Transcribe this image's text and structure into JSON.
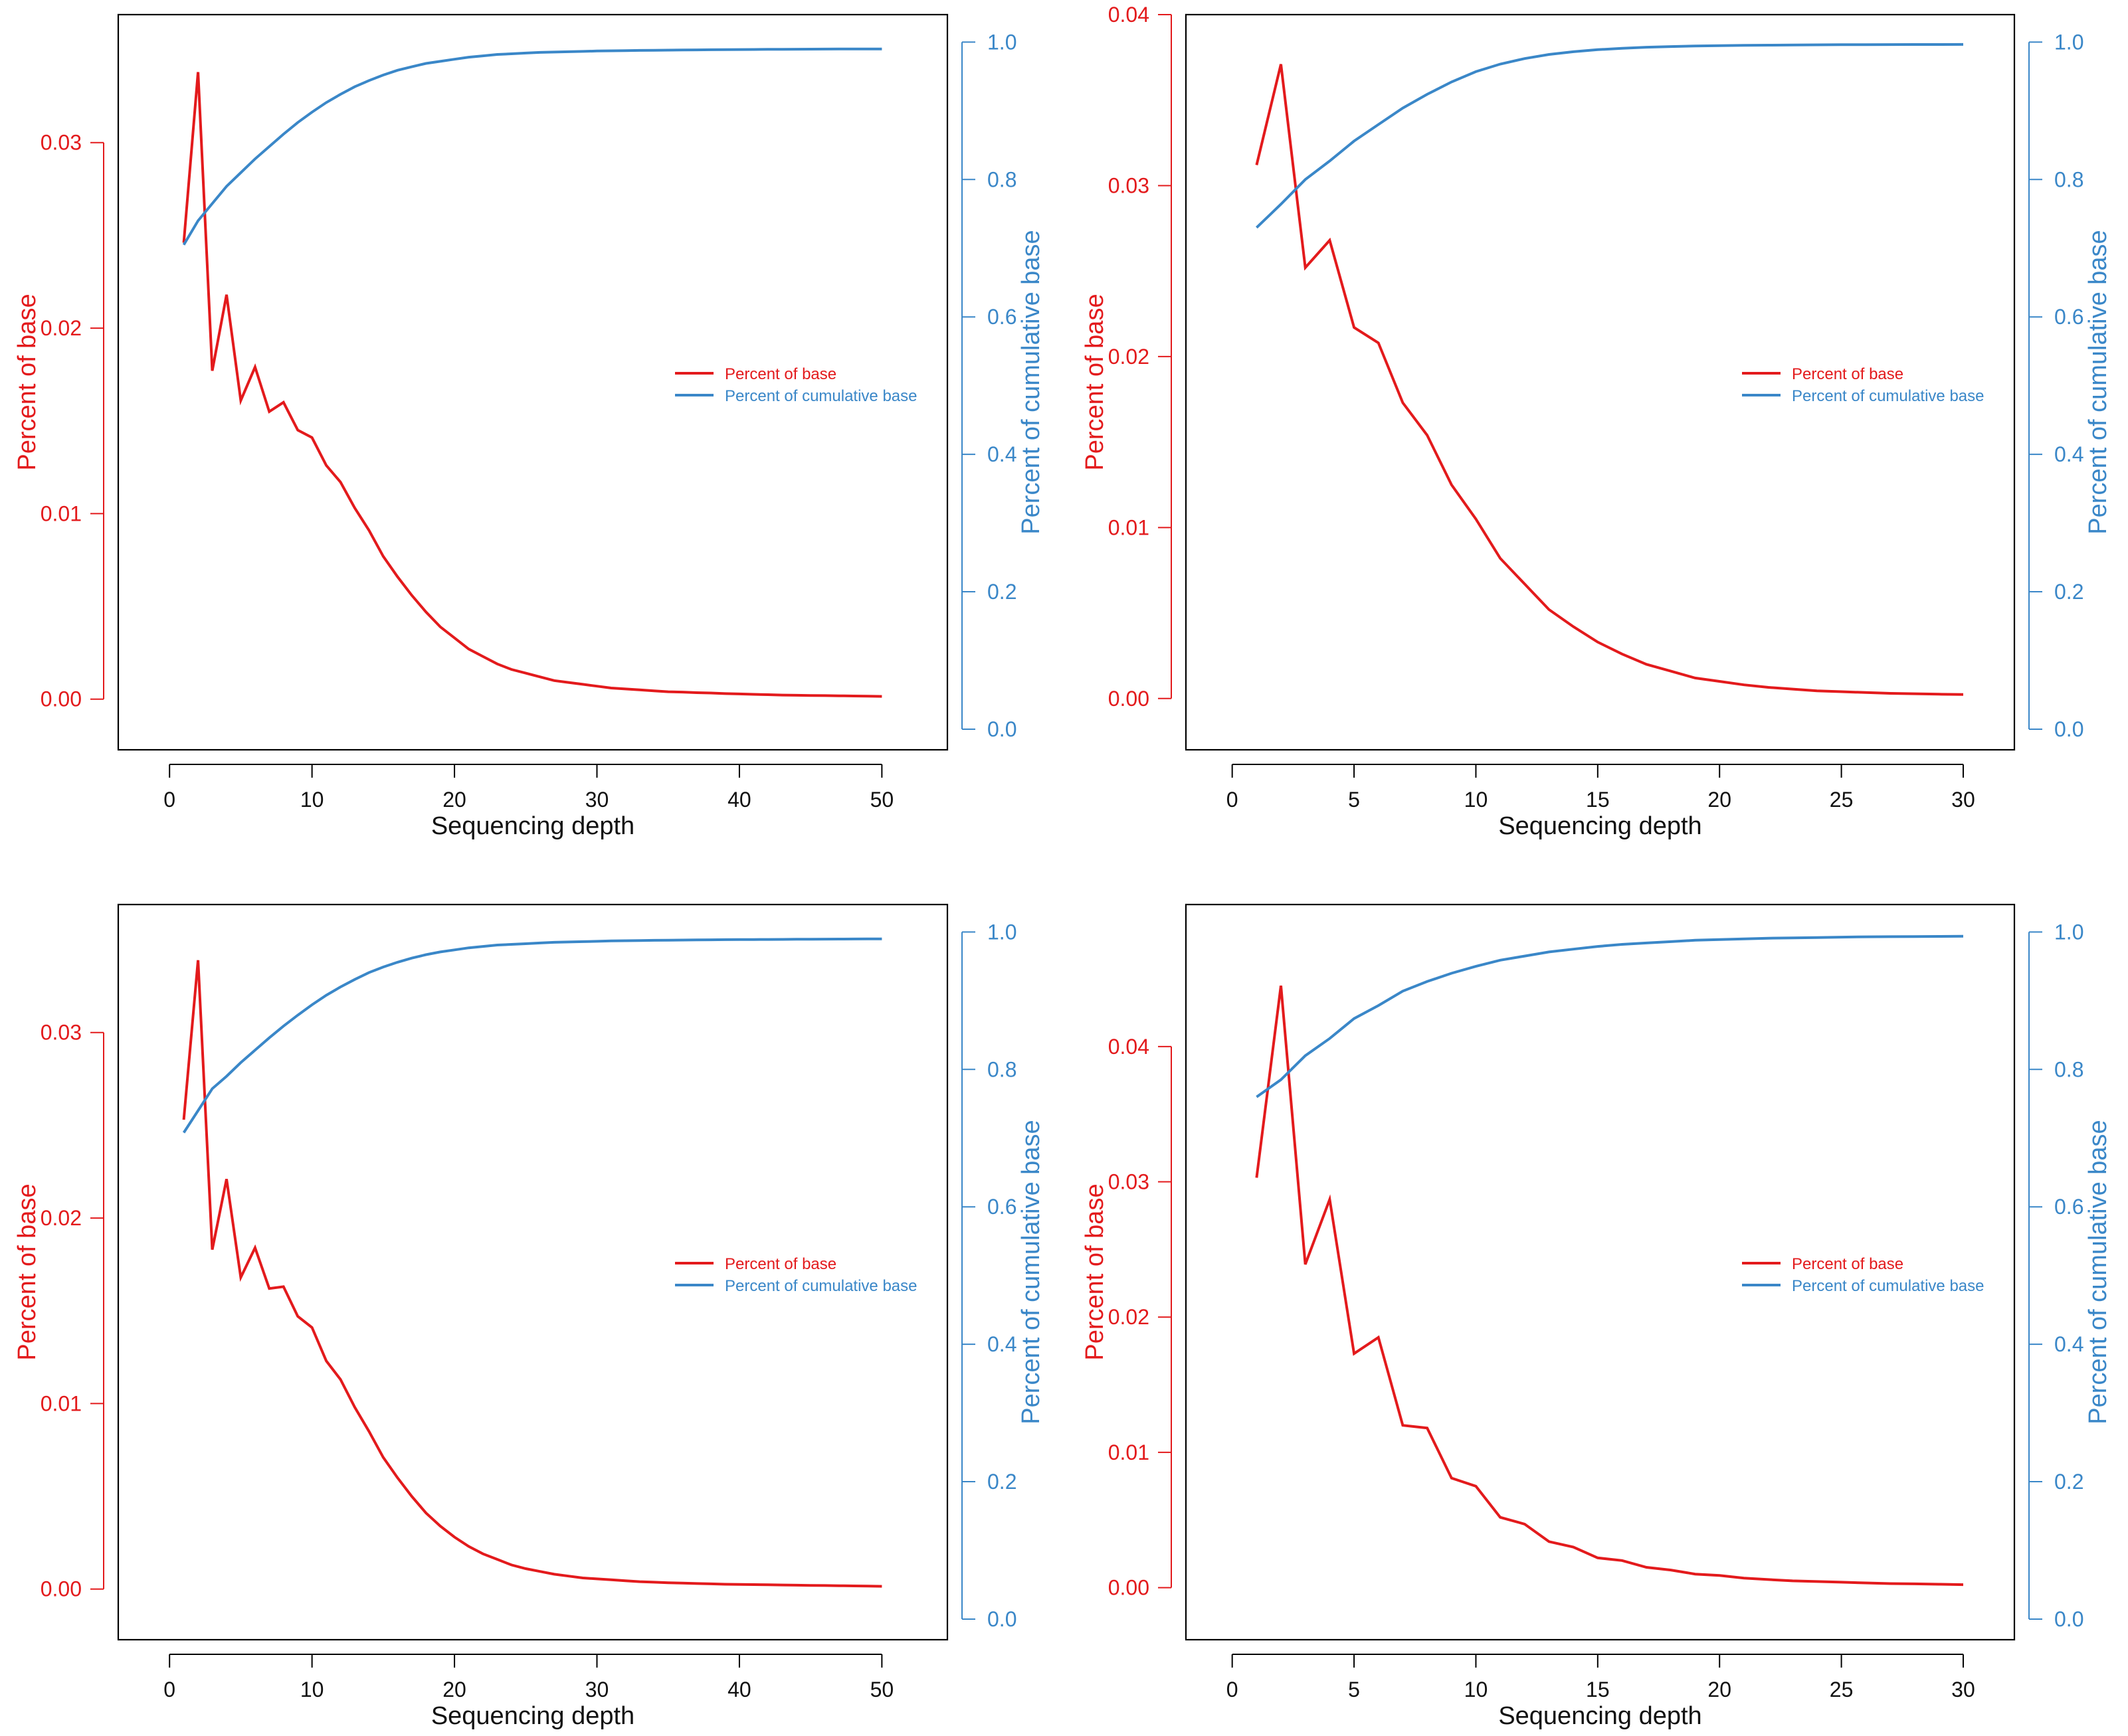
{
  "colors": {
    "left_axis": "#e31a1c",
    "right_axis": "#3a87c8",
    "frame": "#000000",
    "background": "#ffffff"
  },
  "chart_data": [
    {
      "type": "line",
      "xlabel": "Sequencing depth",
      "ylabel_left": "Percent of base",
      "ylabel_right": "Percent of cumulative base",
      "xlim": [
        -3.6,
        54.6
      ],
      "xticks": [
        0,
        10,
        20,
        30,
        40,
        50
      ],
      "ylim_left": [
        -0.00273,
        0.0369
      ],
      "yticks_left": [
        0.0,
        0.01,
        0.02,
        0.03
      ],
      "ytick_labels_left": [
        "0.00",
        "0.01",
        "0.02",
        "0.03"
      ],
      "ylim_right": [
        -0.03,
        1.04
      ],
      "yticks_right": [
        0.0,
        0.2,
        0.4,
        0.6,
        0.8,
        1.0
      ],
      "ytick_labels_right": [
        "0.0",
        "0.2",
        "0.4",
        "0.6",
        "0.8",
        "1.0"
      ],
      "legend": {
        "placement": "center-right",
        "entries": [
          "Percent of base",
          "Percent of cumulative base"
        ]
      },
      "series": [
        {
          "name": "Percent of base",
          "axis": "left",
          "x": [
            1,
            2,
            3,
            4,
            5,
            6,
            7,
            8,
            9,
            10,
            11,
            12,
            13,
            14,
            15,
            16,
            17,
            18,
            19,
            20,
            21,
            22,
            23,
            24,
            25,
            26,
            27,
            28,
            29,
            30,
            31,
            32,
            33,
            34,
            35,
            36,
            37,
            38,
            39,
            40,
            41,
            42,
            43,
            44,
            45,
            46,
            47,
            48,
            49,
            50
          ],
          "values": [
            0.0246,
            0.0338,
            0.0177,
            0.0218,
            0.0161,
            0.0179,
            0.0155,
            0.016,
            0.0145,
            0.0141,
            0.0126,
            0.0117,
            0.0103,
            0.0091,
            0.0077,
            0.0066,
            0.0056,
            0.0047,
            0.0039,
            0.0033,
            0.0027,
            0.0023,
            0.0019,
            0.0016,
            0.0014,
            0.0012,
            0.001,
            0.0009,
            0.0008,
            0.0007,
            0.0006,
            0.00055,
            0.0005,
            0.00045,
            0.0004,
            0.00038,
            0.00035,
            0.00033,
            0.0003,
            0.00028,
            0.00026,
            0.00024,
            0.00022,
            0.00021,
            0.0002,
            0.00019,
            0.00018,
            0.00017,
            0.00016,
            0.00015
          ]
        },
        {
          "name": "Percent of cumulative base",
          "axis": "right",
          "x": [
            1,
            2,
            3,
            4,
            5,
            6,
            7,
            8,
            9,
            10,
            11,
            12,
            13,
            14,
            15,
            16,
            17,
            18,
            19,
            20,
            21,
            22,
            23,
            24,
            25,
            26,
            27,
            28,
            29,
            30,
            31,
            32,
            33,
            34,
            35,
            36,
            37,
            38,
            39,
            40,
            41,
            42,
            43,
            44,
            45,
            46,
            47,
            48,
            49,
            50
          ],
          "values": [
            0.705,
            0.74,
            0.765,
            0.79,
            0.81,
            0.83,
            0.848,
            0.866,
            0.883,
            0.898,
            0.912,
            0.924,
            0.935,
            0.944,
            0.952,
            0.959,
            0.964,
            0.969,
            0.972,
            0.975,
            0.978,
            0.98,
            0.982,
            0.983,
            0.984,
            0.985,
            0.9855,
            0.986,
            0.9865,
            0.987,
            0.9873,
            0.9876,
            0.9879,
            0.9881,
            0.9883,
            0.9885,
            0.9887,
            0.9889,
            0.989,
            0.9892,
            0.9893,
            0.9894,
            0.9895,
            0.9896,
            0.9897,
            0.9898,
            0.9899,
            0.99,
            0.99,
            0.99
          ]
        }
      ]
    },
    {
      "type": "line",
      "xlabel": "Sequencing depth",
      "ylabel_left": "Percent of base",
      "ylabel_right": "Percent of cumulative base",
      "xlim": [
        -1.9,
        32.1
      ],
      "xticks": [
        0,
        5,
        10,
        15,
        20,
        25,
        30
      ],
      "ylim_left": [
        -0.003,
        0.04
      ],
      "yticks_left": [
        0.0,
        0.01,
        0.02,
        0.03,
        0.04
      ],
      "ytick_labels_left": [
        "0.00",
        "0.01",
        "0.02",
        "0.03",
        "0.04"
      ],
      "ylim_right": [
        -0.03,
        1.04
      ],
      "yticks_right": [
        0.0,
        0.2,
        0.4,
        0.6,
        0.8,
        1.0
      ],
      "ytick_labels_right": [
        "0.0",
        "0.2",
        "0.4",
        "0.6",
        "0.8",
        "1.0"
      ],
      "legend": {
        "placement": "center-right",
        "entries": [
          "Percent of base",
          "Percent of cumulative base"
        ]
      },
      "series": [
        {
          "name": "Percent of base",
          "axis": "left",
          "x": [
            1,
            2,
            3,
            4,
            5,
            6,
            7,
            8,
            9,
            10,
            11,
            12,
            13,
            14,
            15,
            16,
            17,
            18,
            19,
            20,
            21,
            22,
            23,
            24,
            25,
            26,
            27,
            28,
            29,
            30
          ],
          "values": [
            0.0312,
            0.0371,
            0.0252,
            0.0268,
            0.0217,
            0.0208,
            0.0173,
            0.0154,
            0.0125,
            0.0105,
            0.0082,
            0.0067,
            0.0052,
            0.0042,
            0.0033,
            0.0026,
            0.002,
            0.0016,
            0.0012,
            0.001,
            0.0008,
            0.00065,
            0.00055,
            0.00045,
            0.0004,
            0.00035,
            0.0003,
            0.00028,
            0.00025,
            0.00023
          ]
        },
        {
          "name": "Percent of cumulative base",
          "axis": "right",
          "x": [
            1,
            2,
            3,
            4,
            5,
            6,
            7,
            8,
            9,
            10,
            11,
            12,
            13,
            14,
            15,
            16,
            17,
            18,
            19,
            20,
            21,
            22,
            23,
            24,
            25,
            26,
            27,
            28,
            29,
            30
          ],
          "values": [
            0.73,
            0.764,
            0.8,
            0.827,
            0.856,
            0.88,
            0.904,
            0.924,
            0.942,
            0.957,
            0.968,
            0.976,
            0.982,
            0.986,
            0.989,
            0.991,
            0.9925,
            0.9935,
            0.9943,
            0.9948,
            0.9952,
            0.9955,
            0.9958,
            0.996,
            0.9962,
            0.9963,
            0.9964,
            0.9965,
            0.9965,
            0.9966
          ]
        }
      ]
    },
    {
      "type": "line",
      "xlabel": "Sequencing depth",
      "ylabel_left": "Percent of base",
      "ylabel_right": "Percent of cumulative base",
      "xlim": [
        -3.6,
        54.6
      ],
      "xticks": [
        0,
        10,
        20,
        30,
        40,
        50
      ],
      "ylim_left": [
        -0.00273,
        0.0369
      ],
      "yticks_left": [
        0.0,
        0.01,
        0.02,
        0.03
      ],
      "ytick_labels_left": [
        "0.00",
        "0.01",
        "0.02",
        "0.03"
      ],
      "ylim_right": [
        -0.03,
        1.04
      ],
      "yticks_right": [
        0.0,
        0.2,
        0.4,
        0.6,
        0.8,
        1.0
      ],
      "ytick_labels_right": [
        "0.0",
        "0.2",
        "0.4",
        "0.6",
        "0.8",
        "1.0"
      ],
      "legend": {
        "placement": "center-right",
        "entries": [
          "Percent of base",
          "Percent of cumulative base"
        ]
      },
      "series": [
        {
          "name": "Percent of base",
          "axis": "left",
          "x": [
            1,
            2,
            3,
            4,
            5,
            6,
            7,
            8,
            9,
            10,
            11,
            12,
            13,
            14,
            15,
            16,
            17,
            18,
            19,
            20,
            21,
            22,
            23,
            24,
            25,
            26,
            27,
            28,
            29,
            30,
            31,
            32,
            33,
            34,
            35,
            36,
            37,
            38,
            39,
            40,
            41,
            42,
            43,
            44,
            45,
            46,
            47,
            48,
            49,
            50
          ],
          "values": [
            0.0253,
            0.0339,
            0.0183,
            0.0221,
            0.0168,
            0.0184,
            0.0162,
            0.0163,
            0.0147,
            0.0141,
            0.0123,
            0.0113,
            0.0098,
            0.0085,
            0.0071,
            0.006,
            0.005,
            0.0041,
            0.0034,
            0.0028,
            0.0023,
            0.0019,
            0.0016,
            0.0013,
            0.0011,
            0.00095,
            0.0008,
            0.0007,
            0.0006,
            0.00055,
            0.0005,
            0.00045,
            0.0004,
            0.00037,
            0.00034,
            0.00032,
            0.0003,
            0.00028,
            0.00026,
            0.00025,
            0.00024,
            0.00023,
            0.00022,
            0.00021,
            0.0002,
            0.00019,
            0.00018,
            0.00017,
            0.00016,
            0.00015
          ]
        },
        {
          "name": "Percent of cumulative base",
          "axis": "right",
          "x": [
            1,
            2,
            3,
            4,
            5,
            6,
            7,
            8,
            9,
            10,
            11,
            12,
            13,
            14,
            15,
            16,
            17,
            18,
            19,
            20,
            21,
            22,
            23,
            24,
            25,
            26,
            27,
            28,
            29,
            30,
            31,
            32,
            33,
            34,
            35,
            36,
            37,
            38,
            39,
            40,
            41,
            42,
            43,
            44,
            45,
            46,
            47,
            48,
            49,
            50
          ],
          "values": [
            0.708,
            0.74,
            0.772,
            0.79,
            0.81,
            0.828,
            0.846,
            0.863,
            0.879,
            0.894,
            0.908,
            0.92,
            0.931,
            0.941,
            0.949,
            0.956,
            0.962,
            0.967,
            0.971,
            0.974,
            0.977,
            0.979,
            0.981,
            0.982,
            0.983,
            0.984,
            0.985,
            0.9855,
            0.986,
            0.9865,
            0.987,
            0.9873,
            0.9876,
            0.9879,
            0.9881,
            0.9883,
            0.9885,
            0.9887,
            0.9889,
            0.989,
            0.9891,
            0.9892,
            0.9893,
            0.9894,
            0.9895,
            0.9896,
            0.9897,
            0.9898,
            0.9899,
            0.99
          ]
        }
      ]
    },
    {
      "type": "line",
      "xlabel": "Sequencing depth",
      "ylabel_left": "Percent of base",
      "ylabel_right": "Percent of cumulative base",
      "xlim": [
        -1.9,
        32.1
      ],
      "xticks": [
        0,
        5,
        10,
        15,
        20,
        25,
        30
      ],
      "ylim_left": [
        -0.00385,
        0.0505
      ],
      "yticks_left": [
        0.0,
        0.01,
        0.02,
        0.03,
        0.04
      ],
      "ytick_labels_left": [
        "0.00",
        "0.01",
        "0.02",
        "0.03",
        "0.04"
      ],
      "ylim_right": [
        -0.03,
        1.04
      ],
      "yticks_right": [
        0.0,
        0.2,
        0.4,
        0.6,
        0.8,
        1.0
      ],
      "ytick_labels_right": [
        "0.0",
        "0.2",
        "0.4",
        "0.6",
        "0.8",
        "1.0"
      ],
      "legend": {
        "placement": "center-right",
        "entries": [
          "Percent of base",
          "Percent of cumulative base"
        ]
      },
      "series": [
        {
          "name": "Percent of base",
          "axis": "left",
          "x": [
            1,
            2,
            3,
            4,
            5,
            6,
            7,
            8,
            9,
            10,
            11,
            12,
            13,
            14,
            15,
            16,
            17,
            18,
            19,
            20,
            21,
            22,
            23,
            24,
            25,
            26,
            27,
            28,
            29,
            30
          ],
          "values": [
            0.0303,
            0.0445,
            0.0239,
            0.0287,
            0.0173,
            0.0185,
            0.012,
            0.0118,
            0.0081,
            0.0075,
            0.0052,
            0.0047,
            0.0034,
            0.003,
            0.0022,
            0.002,
            0.0015,
            0.0013,
            0.001,
            0.0009,
            0.0007,
            0.0006,
            0.0005,
            0.00045,
            0.0004,
            0.00035,
            0.0003,
            0.00028,
            0.00025,
            0.00022
          ]
        },
        {
          "name": "Percent of cumulative base",
          "axis": "right",
          "x": [
            1,
            2,
            3,
            4,
            5,
            6,
            7,
            8,
            9,
            10,
            11,
            12,
            13,
            14,
            15,
            16,
            17,
            18,
            19,
            20,
            21,
            22,
            23,
            24,
            25,
            26,
            27,
            28,
            29,
            30
          ],
          "values": [
            0.76,
            0.785,
            0.82,
            0.845,
            0.874,
            0.893,
            0.914,
            0.928,
            0.94,
            0.95,
            0.959,
            0.965,
            0.971,
            0.975,
            0.979,
            0.982,
            0.984,
            0.986,
            0.988,
            0.989,
            0.99,
            0.991,
            0.9915,
            0.992,
            0.9925,
            0.993,
            0.9932,
            0.9934,
            0.9936,
            0.9938
          ]
        }
      ]
    }
  ]
}
